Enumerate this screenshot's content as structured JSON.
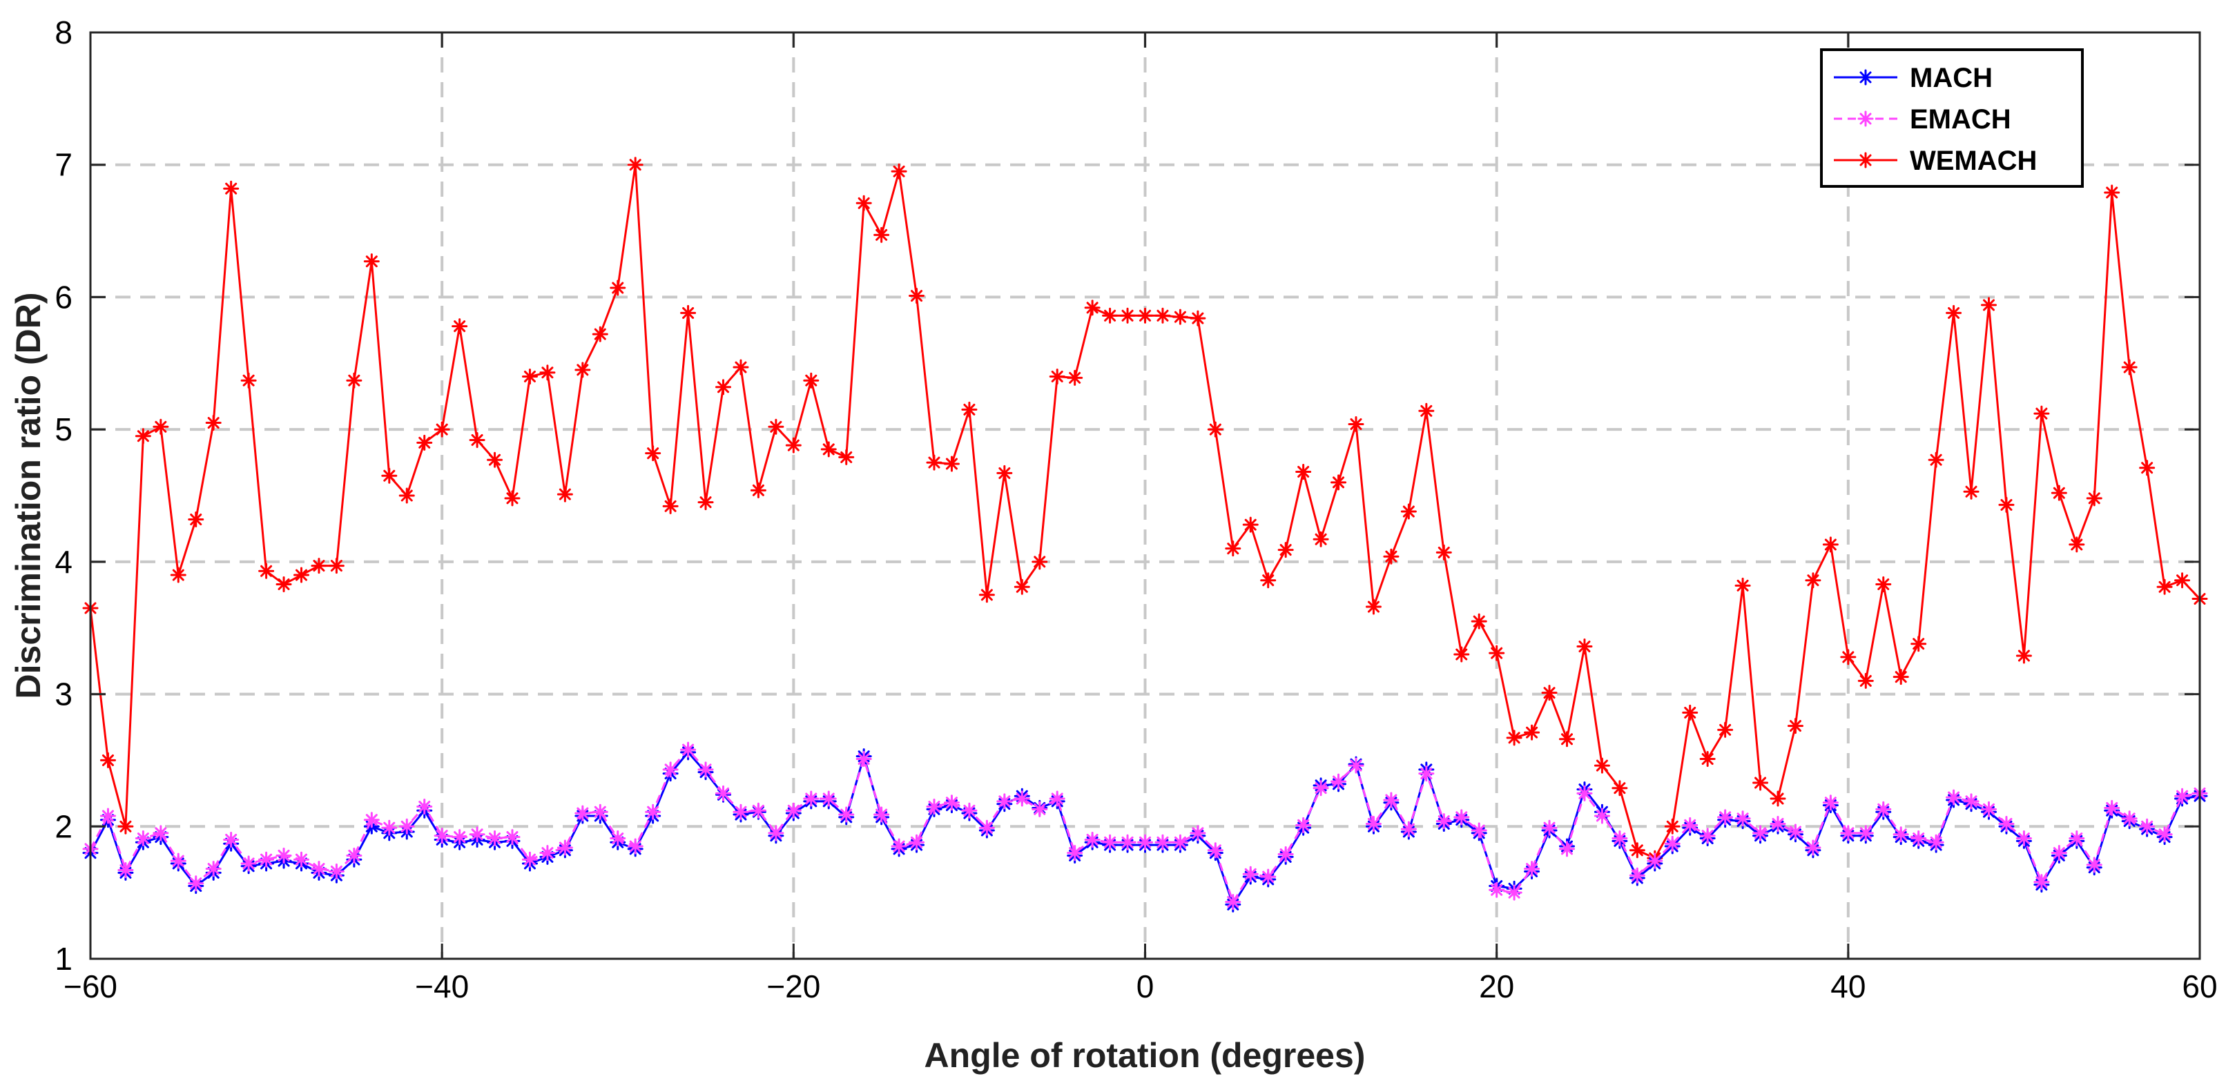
{
  "chart_data": {
    "type": "line",
    "title": "",
    "xlabel": "Angle of rotation (degrees)",
    "ylabel": "Discrimination ratio (DR)",
    "xlim": [
      -60,
      60
    ],
    "ylim": [
      1,
      8
    ],
    "xticks": [
      -60,
      -40,
      -20,
      0,
      20,
      40,
      60
    ],
    "yticks": [
      1,
      2,
      3,
      4,
      5,
      6,
      7,
      8
    ],
    "xtick_labels": [
      "−60",
      "−40",
      "−20",
      "0",
      "20",
      "40",
      "60"
    ],
    "ytick_labels": [
      "1",
      "2",
      "3",
      "4",
      "5",
      "6",
      "7",
      "8"
    ],
    "grid": true,
    "legend_position": "top-right",
    "x_start": -60,
    "x_step": 1,
    "series": [
      {
        "name": "MACH",
        "color": "#0000ff",
        "line_style": "solid",
        "marker": "asterisk",
        "values": [
          1.8,
          2.05,
          1.65,
          1.88,
          1.92,
          1.72,
          1.55,
          1.65,
          1.87,
          1.7,
          1.72,
          1.74,
          1.72,
          1.65,
          1.63,
          1.75,
          2.0,
          1.95,
          1.96,
          2.12,
          1.9,
          1.88,
          1.9,
          1.88,
          1.89,
          1.72,
          1.77,
          1.82,
          2.08,
          2.08,
          1.88,
          1.83,
          2.08,
          2.4,
          2.56,
          2.41,
          2.24,
          2.09,
          2.11,
          1.93,
          2.1,
          2.19,
          2.19,
          2.07,
          2.53,
          2.07,
          1.83,
          1.86,
          2.13,
          2.16,
          2.1,
          1.97,
          2.17,
          2.23,
          2.14,
          2.19,
          1.78,
          1.88,
          1.86,
          1.86,
          1.86,
          1.86,
          1.86,
          1.93,
          1.8,
          1.41,
          1.62,
          1.6,
          1.77,
          1.99,
          2.31,
          2.32,
          2.47,
          2.0,
          2.18,
          1.96,
          2.43,
          2.02,
          2.05,
          1.95,
          1.55,
          1.53,
          1.66,
          1.97,
          1.85,
          2.28,
          2.11,
          1.89,
          1.61,
          1.72,
          1.85,
          1.99,
          1.91,
          2.05,
          2.04,
          1.93,
          2.0,
          1.94,
          1.82,
          2.16,
          1.93,
          1.93,
          2.11,
          1.92,
          1.89,
          1.86,
          2.2,
          2.17,
          2.11,
          2.0,
          1.89,
          1.56,
          1.78,
          1.89,
          1.69,
          2.12,
          2.04,
          1.98,
          1.92,
          2.21,
          2.23
        ]
      },
      {
        "name": "EMACH",
        "color": "#ff44ff",
        "line_style": "dashed",
        "marker": "asterisk",
        "values": [
          1.83,
          2.08,
          1.67,
          1.91,
          1.95,
          1.74,
          1.57,
          1.68,
          1.9,
          1.72,
          1.75,
          1.78,
          1.75,
          1.68,
          1.66,
          1.78,
          2.05,
          1.99,
          2.0,
          2.15,
          1.93,
          1.92,
          1.94,
          1.91,
          1.92,
          1.75,
          1.8,
          1.84,
          2.1,
          2.11,
          1.91,
          1.85,
          2.11,
          2.43,
          2.58,
          2.43,
          2.25,
          2.11,
          2.12,
          1.95,
          2.12,
          2.21,
          2.21,
          2.09,
          2.51,
          2.09,
          1.85,
          1.88,
          2.15,
          2.18,
          2.12,
          1.99,
          2.19,
          2.21,
          2.13,
          2.21,
          1.8,
          1.9,
          1.88,
          1.88,
          1.88,
          1.88,
          1.88,
          1.95,
          1.82,
          1.43,
          1.64,
          1.62,
          1.79,
          2.01,
          2.29,
          2.34,
          2.46,
          2.02,
          2.2,
          1.98,
          2.4,
          2.04,
          2.07,
          1.97,
          1.52,
          1.5,
          1.68,
          1.99,
          1.83,
          2.25,
          2.08,
          1.91,
          1.63,
          1.74,
          1.87,
          2.01,
          1.93,
          2.07,
          2.06,
          1.95,
          2.02,
          1.96,
          1.84,
          2.18,
          1.95,
          1.95,
          2.13,
          1.94,
          1.91,
          1.88,
          2.22,
          2.19,
          2.13,
          2.02,
          1.91,
          1.58,
          1.8,
          1.91,
          1.71,
          2.14,
          2.06,
          2.0,
          1.94,
          2.23,
          2.25
        ]
      },
      {
        "name": "WEMACH",
        "color": "#ff0000",
        "line_style": "solid",
        "marker": "asterisk",
        "values": [
          3.65,
          2.5,
          2.0,
          4.95,
          5.02,
          3.9,
          4.32,
          5.05,
          6.82,
          5.37,
          3.93,
          3.83,
          3.9,
          3.97,
          3.97,
          5.37,
          6.27,
          4.65,
          4.5,
          4.9,
          5.0,
          5.78,
          4.92,
          4.77,
          4.48,
          5.4,
          5.43,
          4.51,
          5.45,
          5.72,
          6.07,
          7.0,
          4.82,
          4.42,
          5.88,
          4.45,
          5.32,
          5.47,
          4.54,
          5.02,
          4.88,
          5.37,
          4.85,
          4.79,
          6.71,
          6.47,
          6.95,
          6.01,
          4.75,
          4.74,
          5.15,
          3.75,
          4.67,
          3.81,
          4.0,
          5.4,
          5.39,
          5.92,
          5.86,
          5.86,
          5.86,
          5.86,
          5.85,
          5.84,
          5.0,
          4.1,
          4.28,
          3.86,
          4.09,
          4.68,
          4.17,
          4.6,
          5.04,
          3.66,
          4.04,
          4.38,
          5.14,
          4.07,
          3.3,
          3.55,
          3.31,
          2.67,
          2.71,
          3.01,
          2.66,
          3.36,
          2.46,
          2.29,
          1.82,
          1.76,
          2.0,
          2.86,
          2.51,
          2.73,
          3.82,
          2.33,
          2.21,
          2.76,
          3.86,
          4.13,
          3.28,
          3.1,
          3.83,
          3.13,
          3.38,
          4.77,
          5.88,
          4.53,
          5.94,
          4.43,
          3.29,
          5.12,
          4.52,
          4.13,
          4.48,
          6.79,
          5.47,
          4.71,
          3.81,
          3.86,
          3.72
        ]
      }
    ]
  }
}
